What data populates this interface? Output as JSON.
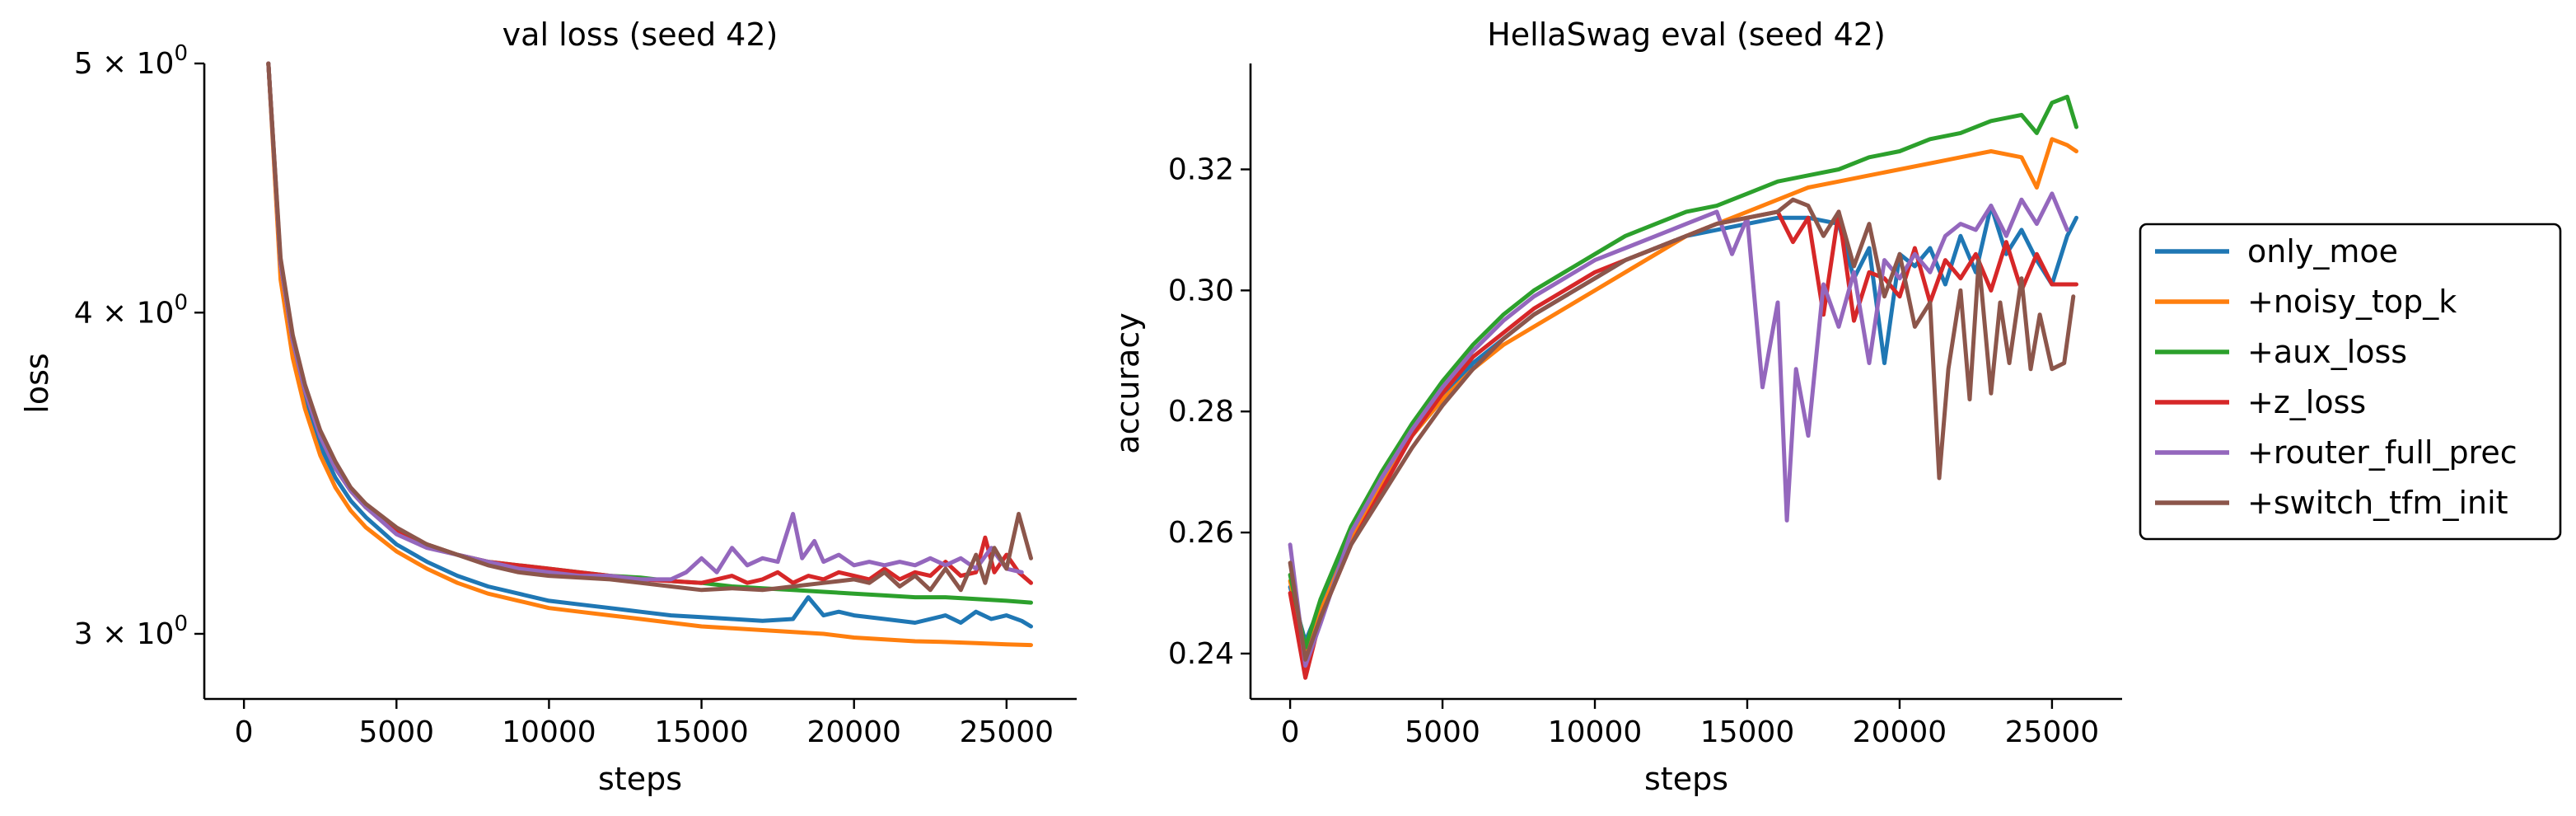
{
  "colors": {
    "only_moe": "#1f77b4",
    "noisy_top_k": "#ff7f0e",
    "aux_loss": "#2ca02c",
    "z_loss": "#d62728",
    "router_full_prec": "#9467bd",
    "switch_tfm_init": "#8c564b"
  },
  "legend": {
    "placement": "right, outside plots, vertically centered",
    "items": [
      "only_moe",
      "+noisy_top_k",
      "+aux_loss",
      "+z_loss",
      "+router_full_prec",
      "+switch_tfm_init"
    ]
  },
  "chart_data": [
    {
      "type": "line",
      "title": "val loss  (seed 42)",
      "xlabel": "steps",
      "ylabel": "loss",
      "yscale": "log",
      "xlim": [
        -1300,
        27300
      ],
      "ylim": [
        2.83,
        5.0
      ],
      "xticks": [
        0,
        5000,
        10000,
        15000,
        20000,
        25000
      ],
      "xtick_labels": [
        "0",
        "5000",
        "10000",
        "15000",
        "20000",
        "25000"
      ],
      "yticks": [
        3,
        4,
        5
      ],
      "ytick_labels": [
        {
          "base": "3 × 10",
          "exp": "0"
        },
        {
          "base": "4 × 10",
          "exp": "0"
        },
        {
          "base": "5 × 10",
          "exp": "0"
        }
      ],
      "grid": false,
      "series": [
        {
          "name": "only_moe",
          "color": "#1f77b4",
          "x": [
            800,
            1200,
            1600,
            2000,
            2500,
            3000,
            3500,
            4000,
            5000,
            6000,
            7000,
            8000,
            9000,
            10000,
            11000,
            12000,
            13000,
            14000,
            15000,
            16000,
            17000,
            18000,
            18500,
            19000,
            19500,
            20000,
            21000,
            22000,
            23000,
            23500,
            24000,
            24500,
            25000,
            25500,
            25800
          ],
          "y": [
            5.0,
            4.15,
            3.87,
            3.7,
            3.55,
            3.45,
            3.38,
            3.33,
            3.25,
            3.2,
            3.16,
            3.13,
            3.11,
            3.09,
            3.08,
            3.07,
            3.06,
            3.05,
            3.045,
            3.04,
            3.035,
            3.04,
            3.1,
            3.05,
            3.06,
            3.05,
            3.04,
            3.03,
            3.05,
            3.03,
            3.06,
            3.04,
            3.05,
            3.035,
            3.02
          ]
        },
        {
          "name": "+noisy_top_k",
          "color": "#ff7f0e",
          "x": [
            800,
            1200,
            1600,
            2000,
            2500,
            3000,
            3500,
            4000,
            5000,
            6000,
            7000,
            8000,
            9000,
            10000,
            11000,
            12000,
            13000,
            14000,
            15000,
            16000,
            17000,
            18000,
            19000,
            20000,
            21000,
            22000,
            23000,
            24000,
            25000,
            25800
          ],
          "y": [
            5.0,
            4.12,
            3.84,
            3.67,
            3.52,
            3.42,
            3.35,
            3.3,
            3.23,
            3.18,
            3.14,
            3.11,
            3.09,
            3.07,
            3.06,
            3.05,
            3.04,
            3.03,
            3.02,
            3.015,
            3.01,
            3.005,
            3.0,
            2.99,
            2.985,
            2.98,
            2.978,
            2.975,
            2.972,
            2.97
          ]
        },
        {
          "name": "+aux_loss",
          "color": "#2ca02c",
          "x": [
            800,
            1200,
            1600,
            2000,
            2500,
            3000,
            3500,
            4000,
            5000,
            6000,
            7000,
            8000,
            9000,
            10000,
            11000,
            12000,
            13000,
            14000,
            15000,
            16000,
            17000,
            18000,
            19000,
            20000,
            21000,
            22000,
            23000,
            24000,
            25000,
            25800
          ],
          "y": [
            5.0,
            4.18,
            3.9,
            3.73,
            3.58,
            3.48,
            3.41,
            3.36,
            3.29,
            3.25,
            3.22,
            3.2,
            3.19,
            3.18,
            3.17,
            3.16,
            3.155,
            3.145,
            3.14,
            3.13,
            3.125,
            3.12,
            3.115,
            3.11,
            3.105,
            3.1,
            3.1,
            3.095,
            3.09,
            3.085
          ]
        },
        {
          "name": "+z_loss",
          "color": "#d62728",
          "x": [
            800,
            1200,
            1600,
            2000,
            2500,
            3000,
            3500,
            4000,
            5000,
            6000,
            7000,
            8000,
            9000,
            10000,
            11000,
            12000,
            13000,
            14000,
            15000,
            15500,
            16000,
            16500,
            17000,
            17500,
            18000,
            18500,
            19000,
            19500,
            20000,
            20500,
            21000,
            21500,
            22000,
            22500,
            23000,
            23500,
            24000,
            24300,
            24600,
            25000,
            25400,
            25800
          ],
          "y": [
            5.0,
            4.18,
            3.9,
            3.73,
            3.58,
            3.48,
            3.41,
            3.36,
            3.29,
            3.25,
            3.22,
            3.2,
            3.19,
            3.18,
            3.17,
            3.16,
            3.15,
            3.145,
            3.14,
            3.15,
            3.16,
            3.14,
            3.15,
            3.17,
            3.14,
            3.16,
            3.15,
            3.17,
            3.16,
            3.15,
            3.18,
            3.15,
            3.17,
            3.16,
            3.2,
            3.16,
            3.17,
            3.27,
            3.17,
            3.22,
            3.17,
            3.14
          ]
        },
        {
          "name": "+router_full_prec",
          "color": "#9467bd",
          "x": [
            800,
            1200,
            1600,
            2000,
            2500,
            3000,
            3500,
            4000,
            5000,
            6000,
            7000,
            8000,
            9000,
            10000,
            11000,
            12000,
            13000,
            14000,
            14500,
            15000,
            15500,
            16000,
            16500,
            17000,
            17500,
            18000,
            18300,
            18700,
            19000,
            19500,
            20000,
            20500,
            21000,
            21500,
            22000,
            22500,
            23000,
            23500,
            24000,
            24500,
            25000,
            25500
          ],
          "y": [
            5.0,
            4.18,
            3.9,
            3.73,
            3.58,
            3.48,
            3.41,
            3.36,
            3.28,
            3.24,
            3.22,
            3.2,
            3.18,
            3.17,
            3.16,
            3.16,
            3.15,
            3.15,
            3.17,
            3.21,
            3.17,
            3.24,
            3.19,
            3.21,
            3.2,
            3.34,
            3.21,
            3.26,
            3.2,
            3.22,
            3.19,
            3.2,
            3.19,
            3.2,
            3.19,
            3.21,
            3.19,
            3.21,
            3.18,
            3.24,
            3.18,
            3.17
          ]
        },
        {
          "name": "+switch_tfm_init",
          "color": "#8c564b",
          "x": [
            800,
            1200,
            1600,
            2000,
            2500,
            3000,
            3500,
            4000,
            5000,
            6000,
            7000,
            8000,
            9000,
            10000,
            11000,
            12000,
            13000,
            14000,
            15000,
            16000,
            17000,
            18000,
            19000,
            20000,
            20500,
            21000,
            21500,
            22000,
            22500,
            23000,
            23500,
            24000,
            24300,
            24600,
            25000,
            25400,
            25800
          ],
          "y": [
            5.0,
            4.2,
            3.92,
            3.75,
            3.6,
            3.5,
            3.42,
            3.37,
            3.3,
            3.25,
            3.22,
            3.19,
            3.17,
            3.16,
            3.155,
            3.15,
            3.14,
            3.13,
            3.12,
            3.125,
            3.12,
            3.13,
            3.14,
            3.15,
            3.14,
            3.17,
            3.13,
            3.16,
            3.12,
            3.18,
            3.12,
            3.22,
            3.14,
            3.24,
            3.18,
            3.34,
            3.21
          ]
        }
      ]
    },
    {
      "type": "line",
      "title": "HellaSwag eval  (seed 42)",
      "xlabel": "steps",
      "ylabel": "accuracy",
      "xlim": [
        -1300,
        27300
      ],
      "ylim": [
        0.2325,
        0.3375
      ],
      "xticks": [
        0,
        5000,
        10000,
        15000,
        20000,
        25000
      ],
      "xtick_labels": [
        "0",
        "5000",
        "10000",
        "15000",
        "20000",
        "25000"
      ],
      "yticks": [
        0.24,
        0.26,
        0.28,
        0.3,
        0.32
      ],
      "ytick_labels": [
        "0.24",
        "0.26",
        "0.28",
        "0.30",
        "0.32"
      ],
      "grid": false,
      "series": [
        {
          "name": "only_moe",
          "color": "#1f77b4",
          "x": [
            0,
            500,
            1000,
            2000,
            3000,
            4000,
            5000,
            6000,
            7000,
            8000,
            9000,
            10000,
            11000,
            12000,
            13000,
            14000,
            15000,
            16000,
            17000,
            18000,
            18500,
            19000,
            19500,
            20000,
            20500,
            21000,
            21500,
            22000,
            22500,
            23000,
            23500,
            24000,
            24500,
            25000,
            25500,
            25800
          ],
          "y": [
            0.251,
            0.242,
            0.248,
            0.26,
            0.268,
            0.276,
            0.282,
            0.288,
            0.292,
            0.296,
            0.299,
            0.302,
            0.305,
            0.307,
            0.309,
            0.31,
            0.311,
            0.312,
            0.312,
            0.311,
            0.302,
            0.307,
            0.288,
            0.306,
            0.304,
            0.307,
            0.301,
            0.309,
            0.303,
            0.314,
            0.306,
            0.31,
            0.305,
            0.301,
            0.309,
            0.312
          ]
        },
        {
          "name": "+noisy_top_k",
          "color": "#ff7f0e",
          "x": [
            0,
            500,
            1000,
            2000,
            3000,
            4000,
            5000,
            6000,
            7000,
            8000,
            9000,
            10000,
            11000,
            12000,
            13000,
            14000,
            15000,
            16000,
            17000,
            18000,
            19000,
            20000,
            21000,
            22000,
            23000,
            24000,
            24500,
            25000,
            25500,
            25800
          ],
          "y": [
            0.252,
            0.24,
            0.247,
            0.259,
            0.268,
            0.276,
            0.282,
            0.287,
            0.291,
            0.294,
            0.297,
            0.3,
            0.303,
            0.306,
            0.309,
            0.311,
            0.313,
            0.315,
            0.317,
            0.318,
            0.319,
            0.32,
            0.321,
            0.322,
            0.323,
            0.322,
            0.317,
            0.325,
            0.324,
            0.323
          ]
        },
        {
          "name": "+aux_loss",
          "color": "#2ca02c",
          "x": [
            0,
            500,
            1000,
            2000,
            3000,
            4000,
            5000,
            6000,
            7000,
            8000,
            9000,
            10000,
            11000,
            12000,
            13000,
            14000,
            15000,
            16000,
            17000,
            18000,
            19000,
            20000,
            21000,
            22000,
            23000,
            24000,
            24500,
            25000,
            25500,
            25800
          ],
          "y": [
            0.253,
            0.241,
            0.249,
            0.261,
            0.27,
            0.278,
            0.285,
            0.291,
            0.296,
            0.3,
            0.303,
            0.306,
            0.309,
            0.311,
            0.313,
            0.314,
            0.316,
            0.318,
            0.319,
            0.32,
            0.322,
            0.323,
            0.325,
            0.326,
            0.328,
            0.329,
            0.326,
            0.331,
            0.332,
            0.327
          ]
        },
        {
          "name": "+z_loss",
          "color": "#d62728",
          "x": [
            0,
            500,
            1000,
            2000,
            3000,
            4000,
            5000,
            6000,
            7000,
            8000,
            9000,
            10000,
            11000,
            12000,
            13000,
            14000,
            15000,
            16000,
            16500,
            17000,
            17500,
            18000,
            18500,
            19000,
            19500,
            20000,
            20500,
            21000,
            21500,
            22000,
            22500,
            23000,
            23500,
            24000,
            24500,
            25000,
            25500,
            25800
          ],
          "y": [
            0.25,
            0.236,
            0.246,
            0.258,
            0.267,
            0.276,
            0.283,
            0.289,
            0.293,
            0.297,
            0.3,
            0.303,
            0.305,
            0.307,
            0.309,
            0.311,
            0.312,
            0.313,
            0.308,
            0.312,
            0.296,
            0.313,
            0.295,
            0.303,
            0.302,
            0.299,
            0.307,
            0.298,
            0.305,
            0.302,
            0.306,
            0.3,
            0.308,
            0.3,
            0.306,
            0.301,
            0.301,
            0.301
          ]
        },
        {
          "name": "+router_full_prec",
          "color": "#9467bd",
          "x": [
            0,
            500,
            1000,
            2000,
            3000,
            4000,
            5000,
            6000,
            7000,
            8000,
            9000,
            10000,
            11000,
            12000,
            13000,
            14000,
            14500,
            15000,
            15500,
            16000,
            16300,
            16600,
            17000,
            17500,
            18000,
            18500,
            19000,
            19500,
            20000,
            20500,
            21000,
            21500,
            22000,
            22500,
            23000,
            23500,
            24000,
            24500,
            25000,
            25500
          ],
          "y": [
            0.258,
            0.238,
            0.245,
            0.26,
            0.269,
            0.277,
            0.284,
            0.29,
            0.295,
            0.299,
            0.302,
            0.305,
            0.307,
            0.309,
            0.311,
            0.313,
            0.306,
            0.312,
            0.284,
            0.298,
            0.262,
            0.287,
            0.276,
            0.301,
            0.294,
            0.303,
            0.288,
            0.305,
            0.302,
            0.306,
            0.303,
            0.309,
            0.311,
            0.31,
            0.314,
            0.309,
            0.315,
            0.311,
            0.316,
            0.31
          ]
        },
        {
          "name": "+switch_tfm_init",
          "color": "#8c564b",
          "x": [
            0,
            500,
            1000,
            2000,
            3000,
            4000,
            5000,
            6000,
            7000,
            8000,
            9000,
            10000,
            11000,
            12000,
            13000,
            14000,
            15000,
            16000,
            16500,
            17000,
            17500,
            18000,
            18500,
            19000,
            19500,
            20000,
            20500,
            21000,
            21300,
            21600,
            22000,
            22300,
            22600,
            23000,
            23300,
            23600,
            24000,
            24300,
            24600,
            25000,
            25400,
            25700
          ],
          "y": [
            0.255,
            0.239,
            0.246,
            0.258,
            0.266,
            0.274,
            0.281,
            0.287,
            0.292,
            0.296,
            0.299,
            0.302,
            0.305,
            0.307,
            0.309,
            0.311,
            0.312,
            0.313,
            0.315,
            0.314,
            0.309,
            0.313,
            0.304,
            0.311,
            0.299,
            0.306,
            0.294,
            0.298,
            0.269,
            0.287,
            0.3,
            0.282,
            0.305,
            0.283,
            0.298,
            0.288,
            0.302,
            0.287,
            0.296,
            0.287,
            0.288,
            0.299
          ]
        }
      ]
    }
  ]
}
